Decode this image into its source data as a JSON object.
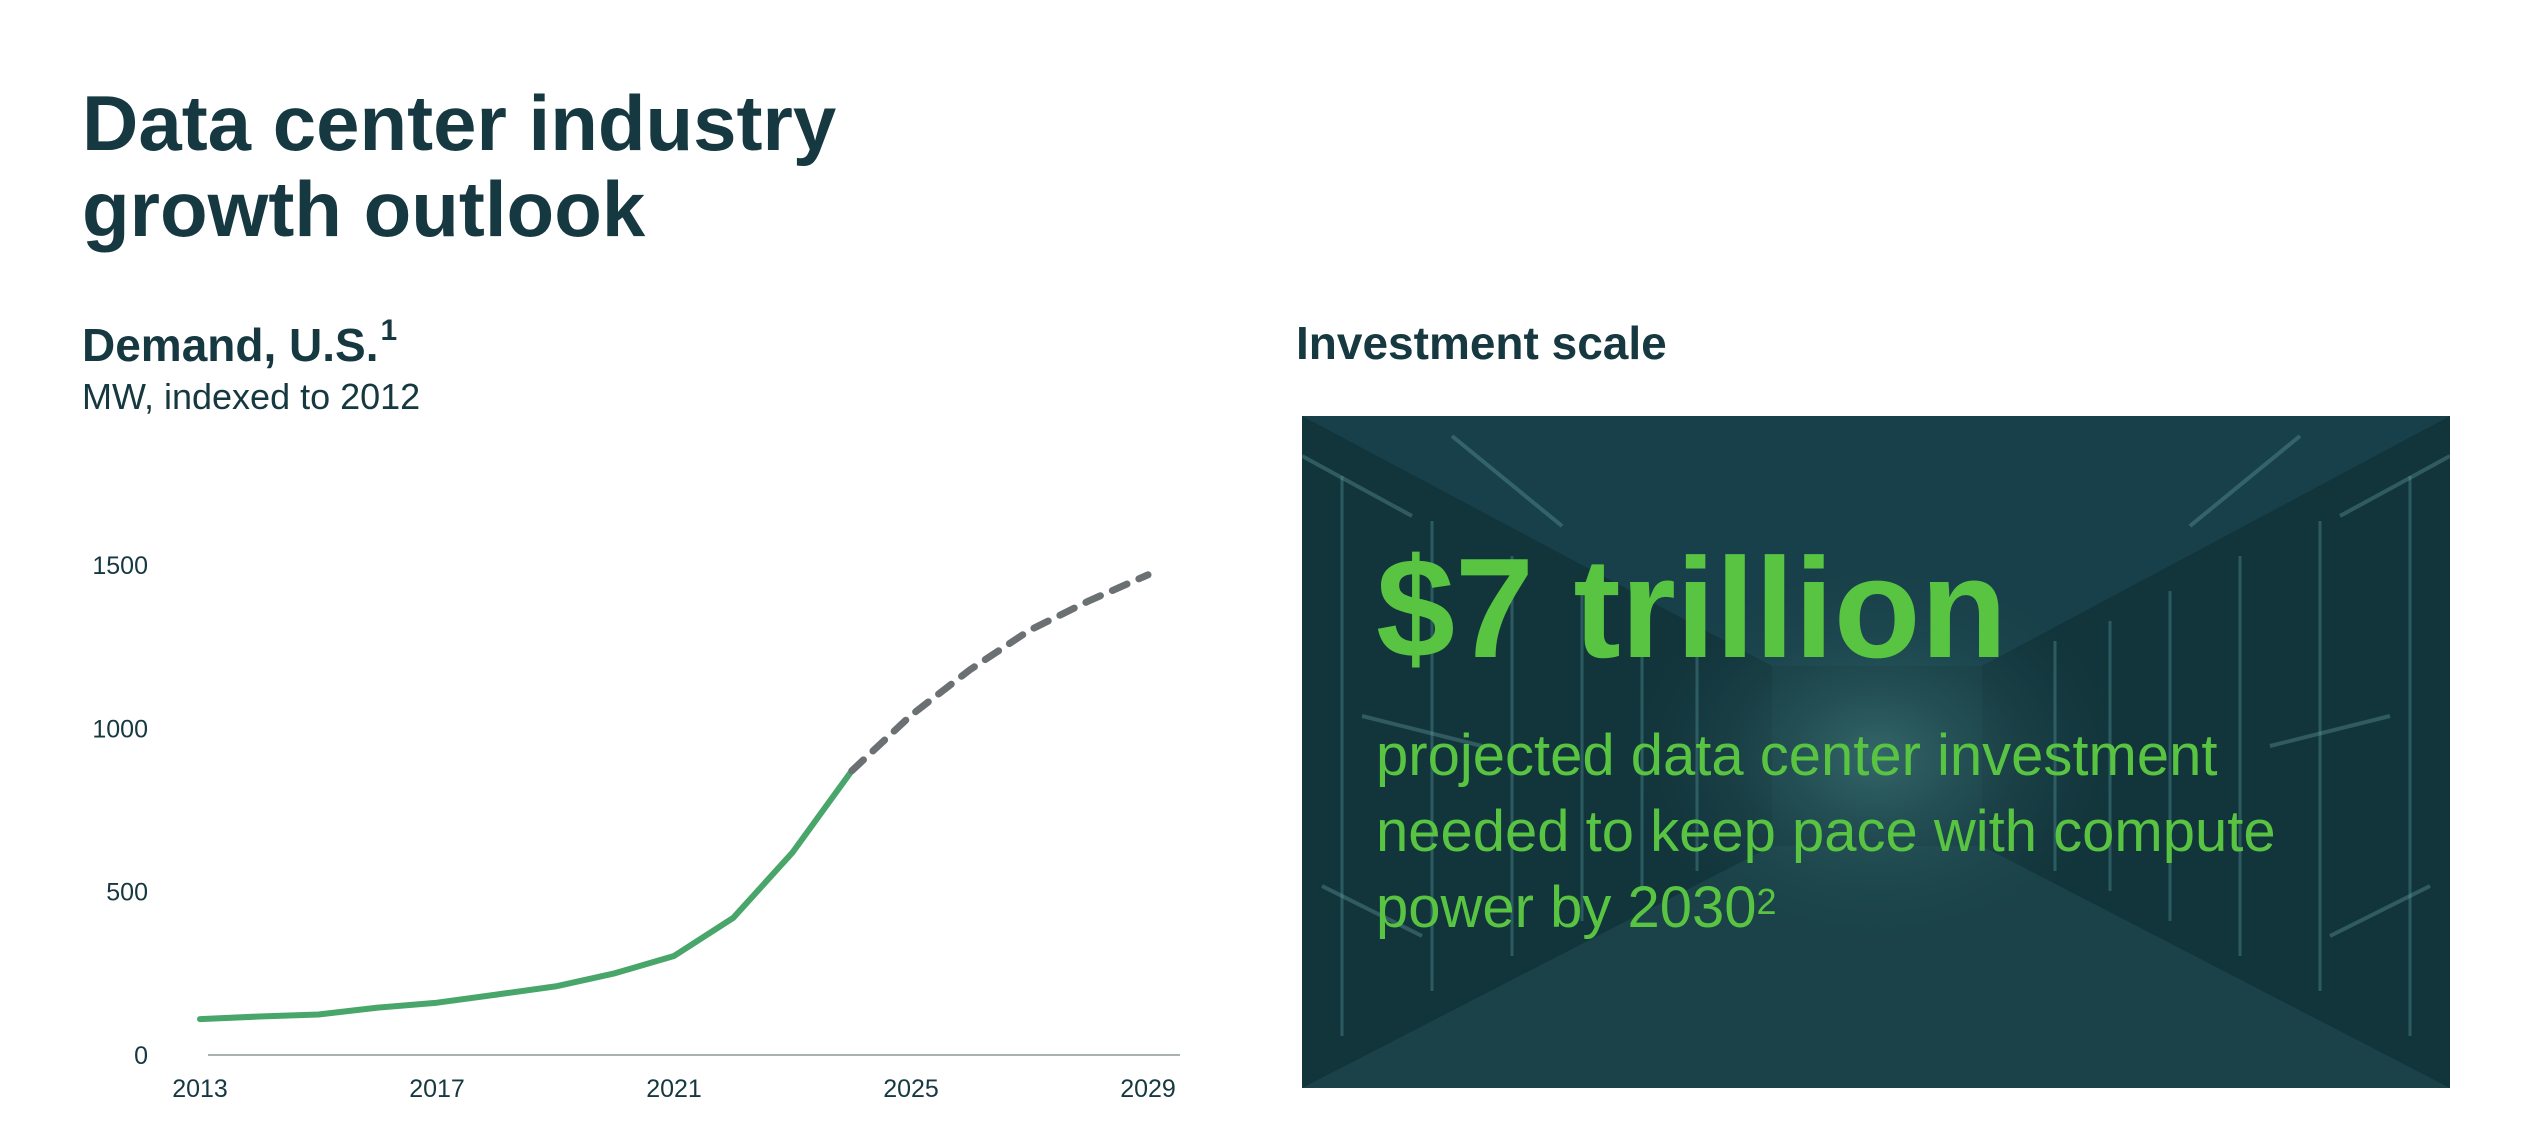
{
  "title": {
    "line1": "Data center industry",
    "line2": "growth outlook"
  },
  "demand": {
    "title": "Demand, U.S.",
    "title_sup": "1",
    "subtitle": "MW, indexed to 2012"
  },
  "investment": {
    "title": "Investment scale",
    "amount": "$7 trillion",
    "description": "projected data center investment needed to keep pace with compute power by 2030",
    "description_sup": "2"
  },
  "colors": {
    "actual": "#48a66a",
    "forecast": "#6b7173",
    "accent": "#58c441",
    "dark": "#163840"
  },
  "chart_data": {
    "type": "line",
    "title": "Demand, U.S.",
    "ylabel": "MW, indexed to 2012",
    "xlim": [
      2013,
      2029
    ],
    "ylim": [
      0,
      1500
    ],
    "xticks": [
      2013,
      2017,
      2021,
      2025,
      2029
    ],
    "yticks": [
      0,
      500,
      1000,
      1500
    ],
    "grid": false,
    "series": [
      {
        "style": "solid",
        "x": [
          2013,
          2014,
          2015,
          2016,
          2017,
          2018,
          2019,
          2020,
          2021,
          2022,
          2023,
          2024
        ],
        "y": [
          110,
          118,
          124,
          145,
          160,
          185,
          210,
          250,
          303,
          420,
          620,
          870
        ]
      },
      {
        "style": "dashed",
        "x": [
          2024,
          2025,
          2026,
          2027,
          2028,
          2029
        ],
        "y": [
          870,
          1040,
          1180,
          1300,
          1390,
          1470
        ]
      }
    ]
  }
}
